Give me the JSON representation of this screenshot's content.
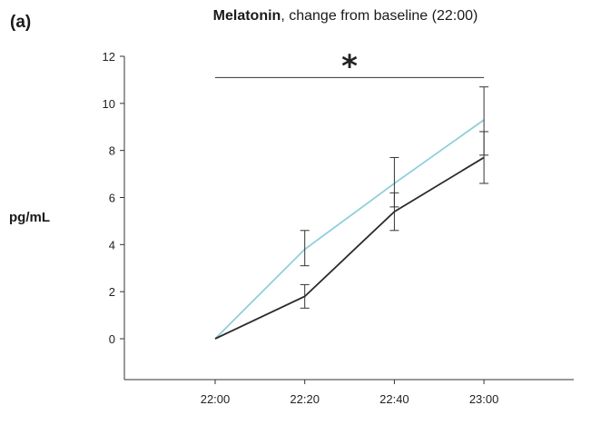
{
  "panel_label": "(a)",
  "chart_data": {
    "type": "line",
    "title_bold": "Melatonin",
    "title_rest": ", change from baseline (22:00)",
    "xlabel": "",
    "ylabel": "pg/mL",
    "categories": [
      "22:00",
      "22:20",
      "22:40",
      "23:00"
    ],
    "ylim": [
      -1.6,
      12
    ],
    "yticks": [
      0,
      2,
      4,
      6,
      8,
      10,
      12
    ],
    "grid": false,
    "series": [
      {
        "color": "#8ecfdc",
        "values": [
          0,
          3.8,
          6.6,
          9.3
        ],
        "err_low": [
          0,
          3.1,
          5.6,
          7.8
        ],
        "err_high": [
          0,
          4.6,
          7.7,
          10.7
        ]
      },
      {
        "color": "#2b2b2b",
        "values": [
          0,
          1.8,
          5.4,
          7.7
        ],
        "err_low": [
          0,
          1.3,
          4.6,
          6.6
        ],
        "err_high": [
          0,
          2.3,
          6.2,
          8.8
        ]
      }
    ],
    "annotation": {
      "text": "*",
      "from": "22:00",
      "to": "23:00",
      "y": 11.1
    }
  }
}
